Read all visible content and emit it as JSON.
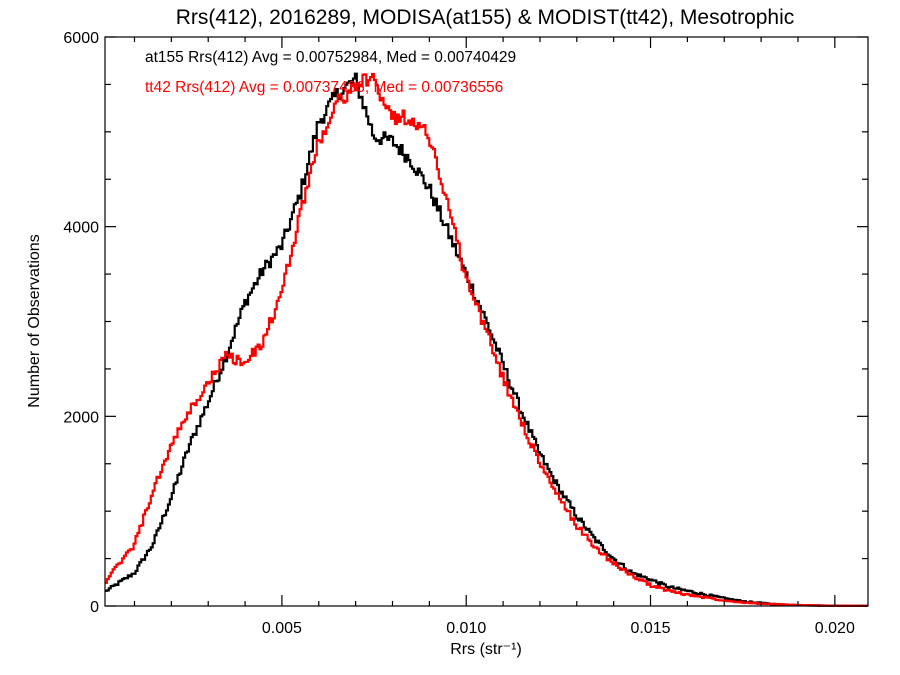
{
  "chart_data": {
    "type": "line",
    "title": "Rrs(412), 2016289, MODISA(at155) & MODIST(tt42), Mesotrophic",
    "xlabel": "Rrs (str⁻¹)",
    "ylabel": "Number of Observations",
    "xlim": [
      0.0002,
      0.0209
    ],
    "ylim": [
      0,
      6000
    ],
    "x_ticks": [
      0.005,
      0.01,
      0.015,
      0.02
    ],
    "x_tick_labels": [
      "0.005",
      "0.010",
      "0.015",
      "0.020"
    ],
    "y_ticks": [
      0,
      2000,
      4000,
      6000
    ],
    "y_tick_labels": [
      "0",
      "2000",
      "4000",
      "6000"
    ],
    "grid": false,
    "annotations": [
      {
        "text": "at155 Rrs(412) Avg = 0.00752984, Med = 0.00740429",
        "color": "#000000"
      },
      {
        "text": "tt42 Rrs(412) Avg = 0.00737436, Med = 0.00736556",
        "color": "#ff0000"
      }
    ],
    "series": [
      {
        "name": "at155",
        "color": "#000000",
        "x": [
          0.0002,
          0.001,
          0.0015,
          0.002,
          0.0025,
          0.003,
          0.0035,
          0.004,
          0.0045,
          0.005,
          0.0055,
          0.006,
          0.0065,
          0.007,
          0.0075,
          0.008,
          0.0085,
          0.009,
          0.0095,
          0.01,
          0.0105,
          0.011,
          0.0115,
          0.012,
          0.0125,
          0.013,
          0.0135,
          0.014,
          0.0145,
          0.015,
          0.0155,
          0.016,
          0.0165,
          0.017,
          0.0175,
          0.018,
          0.0185,
          0.019,
          0.0195,
          0.02,
          0.0209
        ],
        "y": [
          150,
          350,
          650,
          1150,
          1700,
          2150,
          2650,
          3200,
          3550,
          3800,
          4350,
          5100,
          5400,
          5550,
          4950,
          4900,
          4700,
          4400,
          3950,
          3500,
          3050,
          2550,
          2050,
          1600,
          1250,
          950,
          700,
          500,
          350,
          280,
          200,
          160,
          120,
          80,
          50,
          30,
          15,
          10,
          5,
          3,
          2
        ]
      },
      {
        "name": "tt42",
        "color": "#ff0000",
        "x": [
          0.0002,
          0.001,
          0.0015,
          0.002,
          0.0025,
          0.003,
          0.0035,
          0.004,
          0.0045,
          0.005,
          0.0055,
          0.006,
          0.0065,
          0.007,
          0.0075,
          0.008,
          0.0085,
          0.009,
          0.0095,
          0.01,
          0.0105,
          0.011,
          0.0115,
          0.012,
          0.0125,
          0.013,
          0.0135,
          0.014,
          0.0145,
          0.015,
          0.0155,
          0.016,
          0.0165,
          0.017,
          0.0175,
          0.018,
          0.0185,
          0.019,
          0.0195,
          0.02,
          0.0209
        ],
        "y": [
          250,
          650,
          1200,
          1700,
          2050,
          2350,
          2650,
          2550,
          2800,
          3300,
          4150,
          4900,
          5300,
          5500,
          5550,
          5150,
          5150,
          4950,
          4250,
          3450,
          2950,
          2400,
          1950,
          1500,
          1150,
          850,
          620,
          450,
          320,
          220,
          160,
          120,
          90,
          60,
          40,
          25,
          15,
          10,
          5,
          3,
          2
        ]
      }
    ]
  }
}
